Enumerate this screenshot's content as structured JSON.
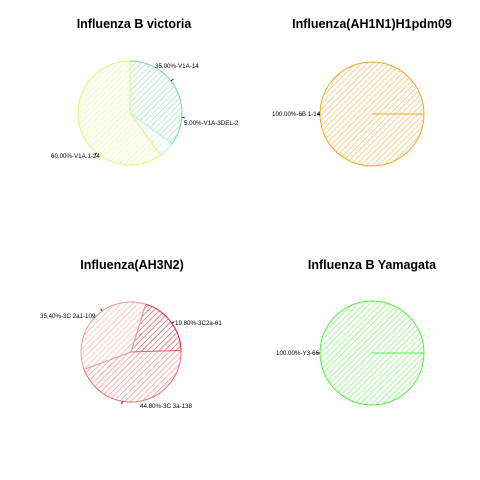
{
  "chart_data": [
    {
      "type": "pie",
      "title": "Influenza B victoria",
      "series": [
        {
          "label": "35.00%-V1A-14",
          "value": 35.0,
          "color": "#77dd99"
        },
        {
          "label": "5.00%-V1A-3DEL-2",
          "value": 5.0,
          "color": "#b7f0dc"
        },
        {
          "label": "60.00%-V1A.1-24",
          "value": 60.0,
          "color": "#d6f87a"
        }
      ]
    },
    {
      "type": "pie",
      "title": "Influenza(AH1N1)H1pdm09",
      "series": [
        {
          "label": "100.00%-6B.1-14",
          "value": 100.0,
          "color": "#f4a623"
        }
      ]
    },
    {
      "type": "pie",
      "title": "Influenza(AH3N2)",
      "series": [
        {
          "label": "19.80%-3C2a-61",
          "value": 19.8,
          "color": "#cc2233"
        },
        {
          "label": "44.80%-3C 3a-138",
          "value": 44.8,
          "color": "#f26a6a"
        },
        {
          "label": "35.40%-3C 2a1-109",
          "value": 35.4,
          "color": "#f09a8a"
        }
      ]
    },
    {
      "type": "pie",
      "title": "Influenza B Yamagata",
      "series": [
        {
          "label": "100.00%-Y3-66",
          "value": 100.0,
          "color": "#55ee44"
        }
      ]
    }
  ]
}
